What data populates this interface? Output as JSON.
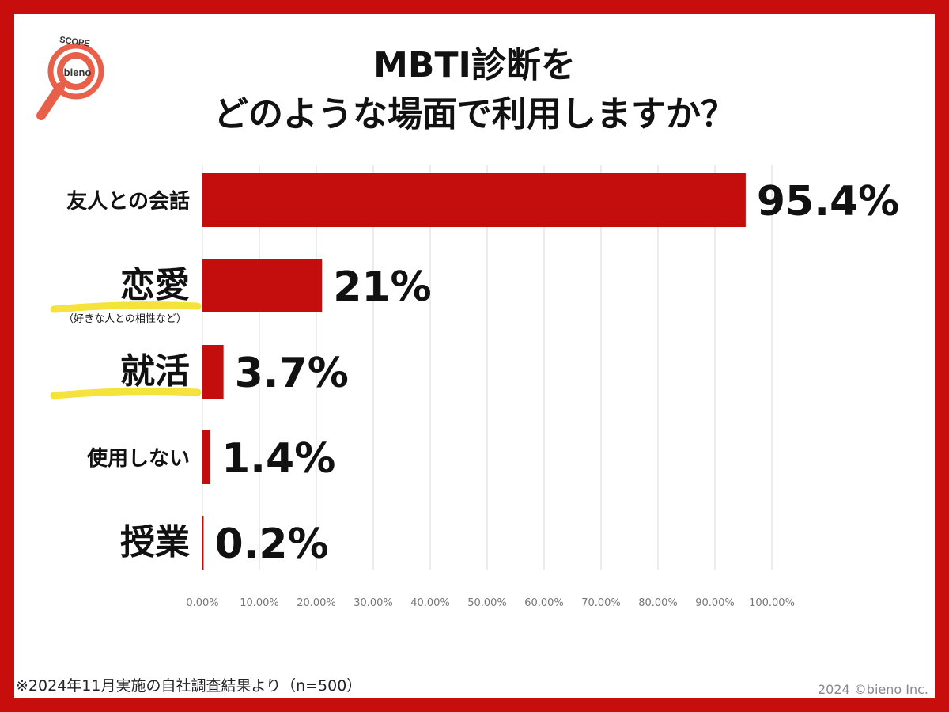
{
  "header": {
    "title_line1": "MBTI診断を",
    "title_line2": "どのような場面で利用しますか？",
    "logo_text_top": "SCOPE",
    "logo_text_center": "bieno"
  },
  "chart_data": {
    "type": "bar",
    "orientation": "horizontal",
    "categories": [
      "友人との会話",
      "恋愛",
      "就活",
      "使用しない",
      "授業"
    ],
    "category_subtitles": [
      "",
      "（好きな人との相性など）",
      "",
      "",
      ""
    ],
    "highlighted_categories": [
      "恋愛",
      "就活"
    ],
    "values": [
      95.4,
      21,
      3.7,
      1.4,
      0.2
    ],
    "value_labels": [
      "95.4%",
      "21%",
      "3.7%",
      "1.4%",
      "0.2%"
    ],
    "xlim": [
      0,
      100
    ],
    "x_ticks": [
      "0.00%",
      "10.00%",
      "20.00%",
      "30.00%",
      "40.00%",
      "50.00%",
      "60.00%",
      "70.00%",
      "80.00%",
      "90.00%",
      "100.00%"
    ],
    "grid": true,
    "bar_color": "#c40d0d",
    "highlight_color": "#f5e23a"
  },
  "footer": {
    "note": "※2024年11月実施の自社調査結果より（n=500）",
    "credit": "2024 ©bieno Inc."
  },
  "colors": {
    "frame": "#c80d0d",
    "logo_accent": "#e8604a"
  }
}
